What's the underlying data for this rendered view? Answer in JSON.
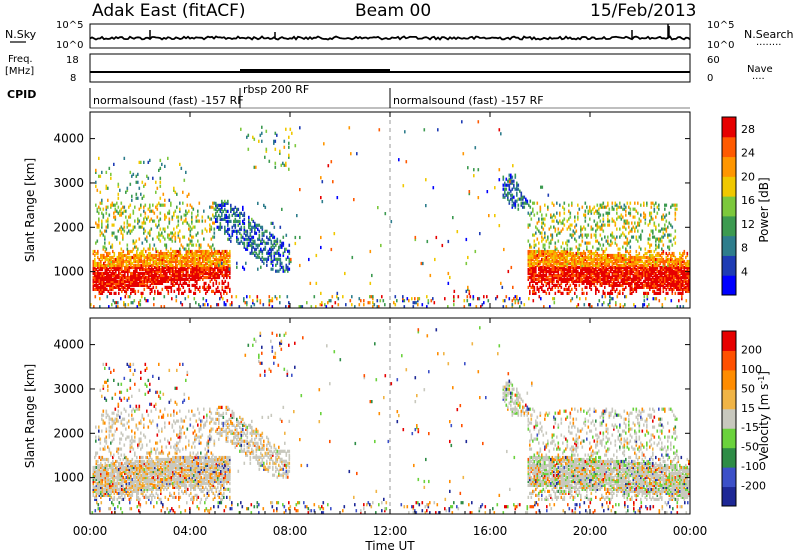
{
  "header": {
    "station": "Adak East (fitACF)",
    "beam": "Beam 00",
    "date": "15/Feb/2013"
  },
  "top_panels": {
    "nsky_label": "N.Sky",
    "nsearch_label": "N.Search",
    "freq_label_1": "Freq.",
    "freq_label_2": "[MHz]",
    "nave_label": "Nave",
    "cpid_label": "CPID",
    "noise_left_ticks": [
      "10^5",
      "10^0"
    ],
    "noise_right_ticks": [
      "10^5",
      "10^0"
    ],
    "freq_left_ticks": [
      "18",
      "8"
    ],
    "nave_right_ticks": [
      "60",
      "0"
    ],
    "cpid_segments": [
      {
        "label": "normalsound (fast) -157 RF",
        "start_hour": 0,
        "end_hour": 6
      },
      {
        "label": "rbsp 200 RF",
        "start_hour": 6,
        "end_hour": 12
      },
      {
        "label": "normalsound (fast) -157 RF",
        "start_hour": 12,
        "end_hour": 24
      }
    ]
  },
  "chart_data": [
    {
      "type": "heatmap",
      "title": "",
      "xlabel": "Time UT",
      "ylabel": "Slant Range [km]",
      "xlim": [
        0,
        24
      ],
      "ylim": [
        180,
        4600
      ],
      "x_tick_labels": [
        "00:00",
        "04:00",
        "08:00",
        "12:00",
        "16:00",
        "20:00",
        "00:00"
      ],
      "y_ticks": [
        1000,
        2000,
        3000,
        4000
      ],
      "colorbar": {
        "label": "Power [dB]",
        "ticks": [
          4,
          8,
          12,
          16,
          20,
          24,
          28
        ],
        "range": [
          0,
          30
        ],
        "colors": [
          "#0000ff",
          "#1e3cb4",
          "#2e7d8c",
          "#3c9a50",
          "#7cc83c",
          "#f0c800",
          "#ff9600",
          "#ff5a00",
          "#e60000"
        ]
      }
    },
    {
      "type": "heatmap",
      "title": "",
      "xlabel": "Time UT",
      "ylabel": "Slant Range [km]",
      "xlim": [
        0,
        24
      ],
      "ylim": [
        180,
        4600
      ],
      "x_tick_labels": [
        "00:00",
        "04:00",
        "08:00",
        "12:00",
        "16:00",
        "20:00",
        "00:00"
      ],
      "y_ticks": [
        1000,
        2000,
        3000,
        4000
      ],
      "colorbar": {
        "label": "Velocity [m s^-1]",
        "ticks": [
          "200",
          "100",
          "50",
          "15",
          "-15",
          "-50",
          "-100",
          "-200"
        ],
        "colors": [
          "#1e2896",
          "#3c50c8",
          "#2e8c46",
          "#6ad23c",
          "#c8c8be",
          "#f0b446",
          "#ff8c00",
          "#ff5000",
          "#e60000"
        ]
      }
    }
  ],
  "style": {
    "frame": "#000000",
    "dashed_midnight_line": "#888888"
  }
}
